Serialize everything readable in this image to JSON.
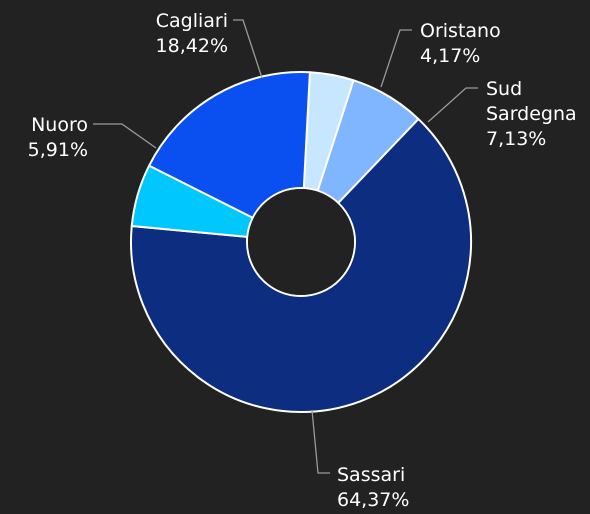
{
  "chart_data": {
    "type": "pie",
    "variant": "donut",
    "title": "",
    "slices": [
      {
        "name": "Oristano",
        "value": 4.17,
        "label": "4,17%",
        "color": "#c7e6ff"
      },
      {
        "name": "Sud Sardegna",
        "value": 7.13,
        "label": "7,13%",
        "color": "#7fb6ff"
      },
      {
        "name": "Sassari",
        "value": 64.37,
        "label": "64,37%",
        "color": "#0d2d80"
      },
      {
        "name": "Nuoro",
        "value": 5.91,
        "label": "5,91%",
        "color": "#00c8ff"
      },
      {
        "name": "Cagliari",
        "value": 18.42,
        "label": "18,42%",
        "color": "#0a4ff0"
      }
    ],
    "start_angle_deg": 3,
    "direction": "clockwise",
    "legend": "none",
    "labels": "outside-with-leader-lines"
  }
}
